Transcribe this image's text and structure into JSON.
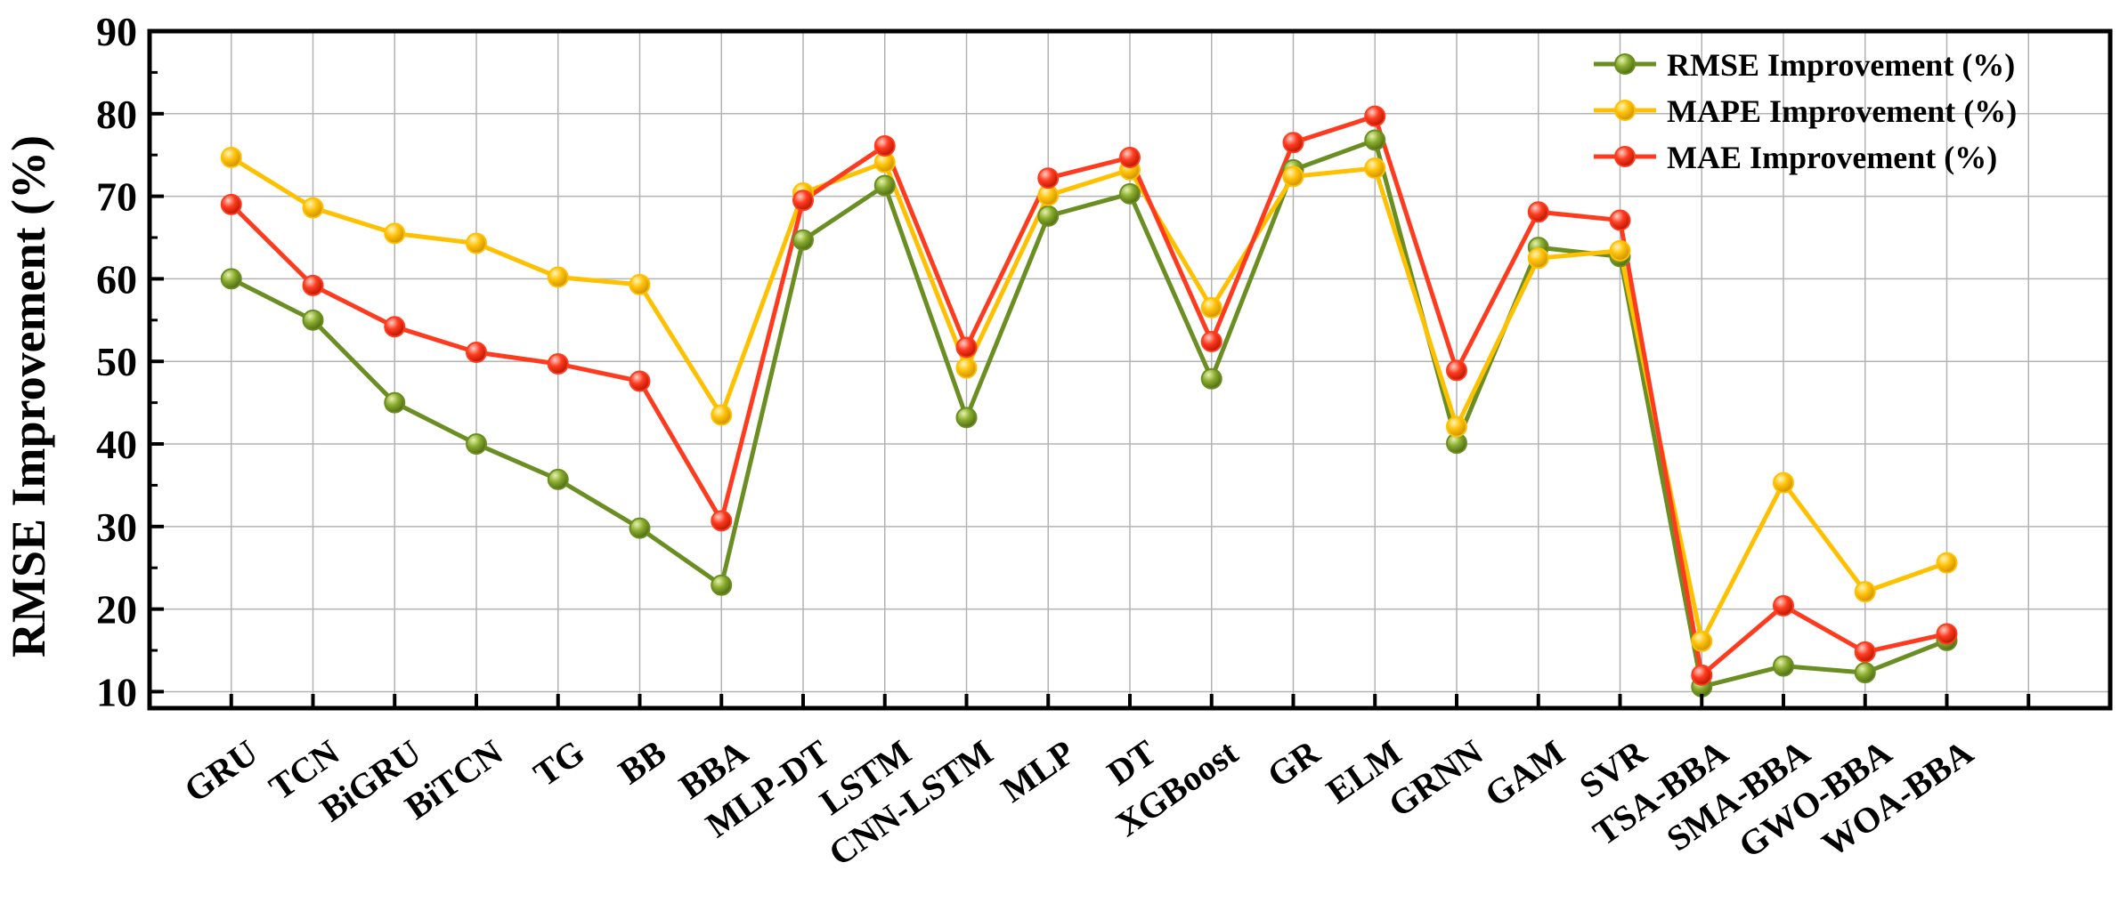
{
  "chart_data": {
    "type": "line",
    "ylabel": "RMSE Improvement (%)",
    "xlabel": "",
    "ylim": [
      8,
      90
    ],
    "yticks": [
      10,
      20,
      30,
      40,
      50,
      60,
      70,
      80,
      90
    ],
    "grid": true,
    "legend_position": "top-right",
    "categories": [
      "GRU",
      "TCN",
      "BiGRU",
      "BiTCN",
      "TG",
      "BB",
      "BBA",
      "MLP-DT",
      "LSTM",
      "CNN-LSTM",
      "MLP",
      "DT",
      "XGBoost",
      "GR",
      "ELM",
      "GRNN",
      "GAM",
      "SVR",
      "TSA-BBA",
      "SMA-BBA",
      "GWO-BBA",
      "WOA-BBA"
    ],
    "series": [
      {
        "name": "RMSE Improvement (%)",
        "color": "#6b8e23",
        "values": [
          60.0,
          55.0,
          45.0,
          40.0,
          35.7,
          29.8,
          22.9,
          64.7,
          71.3,
          43.2,
          67.6,
          70.3,
          47.9,
          73.2,
          76.8,
          40.1,
          63.8,
          62.7,
          10.6,
          13.1,
          12.3,
          16.2
        ]
      },
      {
        "name": "MAPE Improvement (%)",
        "color": "#ffc000",
        "values": [
          74.7,
          68.6,
          65.5,
          64.3,
          60.2,
          59.3,
          43.5,
          70.4,
          74.1,
          49.2,
          70.1,
          73.2,
          56.5,
          72.4,
          73.4,
          42.1,
          62.5,
          63.4,
          16.1,
          35.3,
          22.1,
          25.6
        ]
      },
      {
        "name": "MAE Improvement (%)",
        "color": "#ff3b1f",
        "values": [
          69.0,
          59.2,
          54.2,
          51.1,
          49.7,
          47.6,
          30.7,
          69.5,
          76.1,
          51.7,
          72.2,
          74.7,
          52.4,
          76.5,
          79.7,
          48.9,
          68.1,
          67.1,
          12.0,
          20.4,
          14.8,
          17.0
        ]
      }
    ]
  }
}
